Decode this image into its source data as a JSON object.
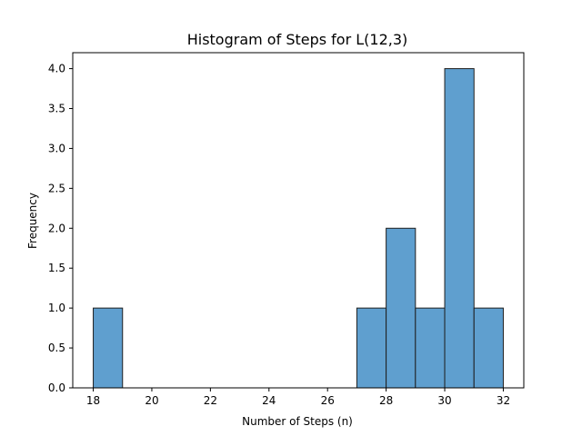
{
  "chart_data": {
    "type": "bar",
    "title": "Histogram of Steps for L(12,3)",
    "xlabel": "Number of Steps (n)",
    "ylabel": "Frequency",
    "bins": [
      {
        "start": 18,
        "end": 19,
        "value": 1
      },
      {
        "start": 19,
        "end": 20,
        "value": 0
      },
      {
        "start": 20,
        "end": 21,
        "value": 0
      },
      {
        "start": 21,
        "end": 22,
        "value": 0
      },
      {
        "start": 22,
        "end": 23,
        "value": 0
      },
      {
        "start": 23,
        "end": 24,
        "value": 0
      },
      {
        "start": 24,
        "end": 25,
        "value": 0
      },
      {
        "start": 25,
        "end": 26,
        "value": 0
      },
      {
        "start": 26,
        "end": 27,
        "value": 0
      },
      {
        "start": 27,
        "end": 28,
        "value": 1
      },
      {
        "start": 28,
        "end": 29,
        "value": 2
      },
      {
        "start": 29,
        "end": 30,
        "value": 1
      },
      {
        "start": 30,
        "end": 31,
        "value": 4
      },
      {
        "start": 31,
        "end": 32,
        "value": 1
      }
    ],
    "xlim": [
      17.3,
      32.7
    ],
    "ylim": [
      0,
      4.2
    ],
    "x_ticks": [
      "18",
      "20",
      "22",
      "24",
      "26",
      "28",
      "30",
      "32"
    ],
    "y_ticks": [
      "0.0",
      "0.5",
      "1.0",
      "1.5",
      "2.0",
      "2.5",
      "3.0",
      "3.5",
      "4.0"
    ],
    "grid": false,
    "legend": "none",
    "bar_color": "#5f9fcf",
    "bar_edge_color": "#1f1f1f"
  }
}
